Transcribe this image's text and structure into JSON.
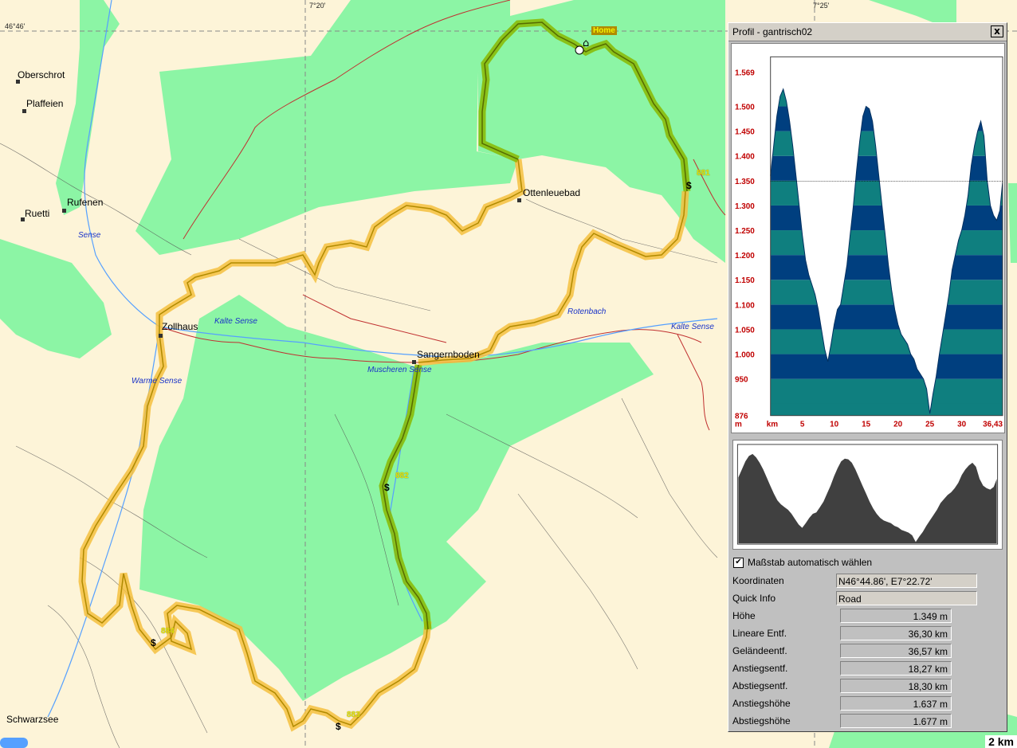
{
  "map": {
    "coords": {
      "lat_top_left": "46°46'",
      "lon_1": "7°20'",
      "lon_2": "7°25'"
    },
    "places": {
      "oberschrot": "Oberschrot",
      "plaffeien": "Plaffeien",
      "rufenen": "Rufenen",
      "ruetti": "Ruetti",
      "zollhaus": "Zollhaus",
      "ottenleuebad": "Ottenleuebad",
      "sangernboden": "Sangernboden",
      "schwarzsee": "Schwarzsee"
    },
    "rivers": {
      "sense": "Sense",
      "kalte_sense_1": "Kalte Sense",
      "kalte_sense_2": "Kalte Sense",
      "warme_sense": "Warme Sense",
      "muscheren_sense": "Muscheren Sense",
      "rotenbach": "Rotenbach"
    },
    "waypoints": {
      "wp881": "881",
      "wp882": "882",
      "wp883": "883",
      "wp884": "884"
    },
    "home_label": "Home",
    "dollar": "$",
    "scale_label": "2 km"
  },
  "panel": {
    "title": "Profil - gantrisch02",
    "close_label": "x",
    "checkbox_label": "Maßstab automatisch wählen",
    "checkbox_checked": true,
    "fields": [
      {
        "label": "Koordinaten",
        "value": "N46°44.86', E7°22.72'"
      },
      {
        "label": "Quick Info",
        "value": "Road"
      },
      {
        "label": "Höhe",
        "value": "1.349 m"
      },
      {
        "label": "Lineare Entf.",
        "value": "36,30 km"
      },
      {
        "label": "Geländeentf.",
        "value": "36,57 km"
      },
      {
        "label": "Anstiegsentf.",
        "value": "18,27 km"
      },
      {
        "label": "Abstiegsentf.",
        "value": "18,30 km"
      },
      {
        "label": "Anstiegshöhe",
        "value": "1.637 m"
      },
      {
        "label": "Abstiegshöhe",
        "value": "1.677 m"
      }
    ]
  },
  "colors": {
    "forest": "#8cf5a5",
    "background": "#fdf4d8",
    "route_orange": "#f5c040",
    "route_green": "#8ab800",
    "profile_dark": "#003f7f",
    "profile_teal": "#0f7f7f",
    "axis_red": "#c00000"
  },
  "chart_data": {
    "type": "area",
    "title": "",
    "xlabel": "km",
    "ylabel": "m",
    "xlim": [
      0,
      36.43
    ],
    "ylim": [
      876,
      1600
    ],
    "x_ticks": [
      "5",
      "10",
      "15",
      "20",
      "25",
      "30",
      "36,43"
    ],
    "y_ticks": [
      "1.569",
      "1.500",
      "1.450",
      "1.400",
      "1.350",
      "1.300",
      "1.250",
      "1.200",
      "1.150",
      "1.100",
      "1.050",
      "1.000",
      "950",
      "876"
    ],
    "cursor_elevation": 1349,
    "x": [
      0,
      0.5,
      1,
      1.5,
      2,
      2.5,
      3,
      3.5,
      4,
      4.5,
      5,
      5.5,
      6,
      6.5,
      7,
      7.5,
      8,
      8.5,
      9,
      9.5,
      10,
      10.5,
      11,
      11.5,
      12,
      12.5,
      13,
      13.5,
      14,
      14.5,
      15,
      15.5,
      16,
      16.5,
      17,
      17.5,
      18,
      18.5,
      19,
      19.5,
      20,
      20.5,
      21,
      21.5,
      22,
      22.5,
      23,
      23.5,
      24,
      24.5,
      25,
      25.5,
      26,
      26.5,
      27,
      27.5,
      28,
      28.5,
      29,
      29.5,
      30,
      30.5,
      31,
      31.5,
      32,
      32.5,
      33,
      33.5,
      34,
      34.5,
      35,
      35.5,
      36,
      36.43
    ],
    "y": [
      1360,
      1420,
      1480,
      1520,
      1535,
      1510,
      1470,
      1420,
      1360,
      1300,
      1240,
      1190,
      1160,
      1140,
      1120,
      1090,
      1050,
      1010,
      985,
      1020,
      1060,
      1090,
      1100,
      1140,
      1180,
      1240,
      1300,
      1370,
      1430,
      1480,
      1500,
      1495,
      1470,
      1420,
      1360,
      1300,
      1240,
      1180,
      1130,
      1090,
      1060,
      1040,
      1030,
      1020,
      1000,
      990,
      970,
      960,
      950,
      930,
      880,
      920,
      955,
      1000,
      1040,
      1080,
      1120,
      1170,
      1200,
      1230,
      1250,
      1280,
      1320,
      1380,
      1420,
      1450,
      1470,
      1440,
      1350,
      1300,
      1280,
      1270,
      1290,
      1349
    ]
  }
}
